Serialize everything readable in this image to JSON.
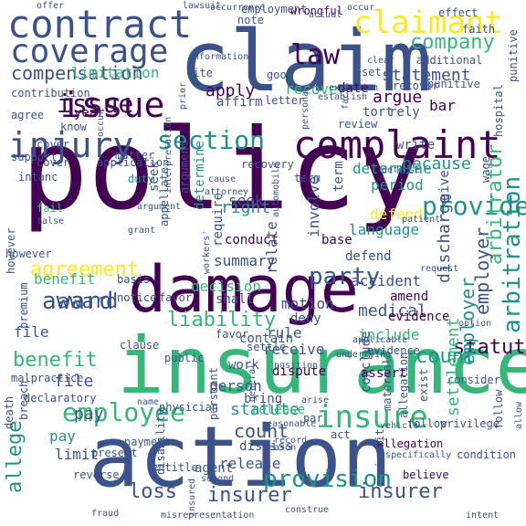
{
  "words": {
    "policy": "policy",
    "insurance": "insurance",
    "claim": "claim",
    "action": "action",
    "damage": "damage",
    "contract": "contract",
    "complaint": "complaint",
    "coverage": "coverage",
    "claimant": "claimant",
    "issue": "issue",
    "injury": "injury",
    "insure": "insure",
    "law": "law",
    "section": "section",
    "employee": "employee",
    "provide": "provide",
    "party": "party",
    "provision": "provision",
    "award": "award",
    "allege": "allege",
    "arbitration": "arbitration",
    "employer": "employer",
    "liability": "liability",
    "loss": "loss",
    "company": "company",
    "benefit": "benefit",
    "statute": "statute",
    "compensation": "compensation",
    "insurer": "insurer",
    "argue": "argue",
    "limitation": "limitation",
    "apply": "apply",
    "pay": "pay",
    "count": "count",
    "file": "file",
    "statement": "statement",
    "medical": "medical",
    "right": "right",
    "because": "because",
    "period": "period",
    "result": "result",
    "arbitrator": "arbitrator",
    "decision": "decision",
    "summary": "summary",
    "determine": "determine",
    "agreement": "agreement",
    "seek": "seek",
    "breach": "breach",
    "language": "language",
    "motion": "motion",
    "require": "require",
    "receive": "receive",
    "recover": "recover",
    "limit": "limit",
    "include": "include",
    "circuit": "circuit",
    "discharge": "discharge",
    "year": "year",
    "duty": "duty",
    "grant": "grant",
    "conduct": "conduct",
    "accident": "accident",
    "person": "person",
    "work": "work",
    "rule": "rule",
    "bring": "bring",
    "deny": "deny",
    "suit": "suit",
    "defend": "defend",
    "dispute": "dispute",
    "release": "release",
    "good": "good",
    "agent": "agent",
    "notice": "notice",
    "base": "base",
    "shall": "shall",
    "relate": "relate",
    "tort": "tort",
    "matter": "matter",
    "involve": "involve",
    "give": "give",
    "evidence": "evidence",
    "consider": "consider",
    "term": "term",
    "contain": "contain",
    "favor": "favor",
    "recovery": "recovery",
    "write": "write",
    "date": "date",
    "rely": "rely",
    "bar": "bar",
    "cite": "cite",
    "note": "note",
    "affirm": "affirm",
    "letter": "letter",
    "review": "review",
    "contend": "contend",
    "defense": "defense",
    "know": "know",
    "agree": "agree",
    "application": "application",
    "cover": "cover",
    "fail": "fail",
    "support": "support",
    "appellate": "appellate",
    "false": "false",
    "basis": "basis",
    "however": "however",
    "present": "present",
    "public": "public",
    "physician": "physician",
    "malpractice": "malpractice",
    "pursuant": "pursuant",
    "settle": "settle",
    "conclude": "conclude",
    "assert": "assert",
    "material": "material",
    "amend": "amend",
    "par": "par",
    "act": "act",
    "reason": "reason",
    "arise": "arise",
    "entitle": "entitle",
    "dismiss": "dismiss",
    "insured": "insured",
    "vehicle": "vehicle",
    "allegation": "allegation",
    "construe": "construe",
    "believe": "believe",
    "settlement": "settlement",
    "fraud": "fraud",
    "misrepresentation": "misrepresentation",
    "death": "death",
    "payment": "payment",
    "reverse": "reverse",
    "disability": "disability",
    "declaratory": "declaratory",
    "premium": "premium",
    "contribution": "contribution",
    "occur": "occur",
    "employment": "employment",
    "wrongful": "wrongful",
    "additional": "additional",
    "faith": "faith",
    "punitive": "punitive",
    "actual": "actual",
    "information": "information",
    "establish": "establish",
    "set": "set",
    "hospital": "hospital",
    "offer": "offer",
    "effect": "effect",
    "occurrence": "occurrence",
    "lawsuit": "lawsuit",
    "automobile": "automobile",
    "exclusion": "exclusion",
    "argument": "argument",
    "intent": "intent",
    "allow": "allow",
    "follow": "follow",
    "privilege": "privilege",
    "condition": "condition",
    "reasonable": "reasonable",
    "specifically": "specifically",
    "applicable": "applicable",
    "exist": "exist",
    "record": "record",
    "underlying": "underlying",
    "position": "position",
    "workers": "workers'",
    "cause": "cause",
    "attorney": "attorney",
    "interpretation": "interpretation",
    "patient": "patient",
    "clear": "clear",
    "request": "request",
    "general": "general",
    "second": "second",
    "name": "name",
    "personal": "personal",
    "action_vertical": "action",
    "option": "option",
    "clause": "clause",
    "intanc": "intanc",
    "prior": "prior",
    "wage": "wage",
    "fact": "fact"
  },
  "palette": {
    "dark_purple": "#440154",
    "indigo": "#3b528b",
    "teal": "#21918c",
    "green": "#35b779",
    "yellow": "#fde725"
  }
}
